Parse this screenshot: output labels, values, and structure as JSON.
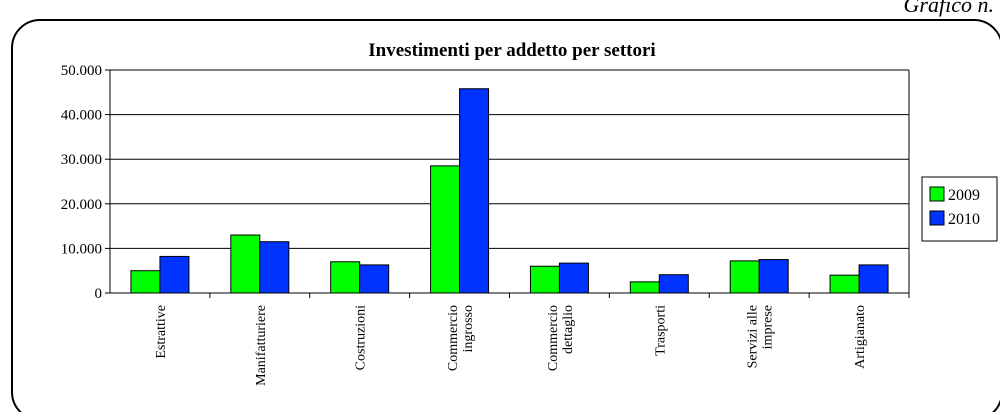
{
  "page": {
    "header_text": "Grafico n."
  },
  "chart_data": {
    "type": "bar",
    "title": "Investimenti per addetto per settori",
    "xlabel": "",
    "ylabel": "",
    "ylim": [
      0,
      50000
    ],
    "yticks": [
      0,
      10000,
      20000,
      30000,
      40000,
      50000
    ],
    "ytick_labels": [
      "0",
      "10.000",
      "20.000",
      "30.000",
      "40.000",
      "50.000"
    ],
    "grid": true,
    "legend_position": "right",
    "categories": [
      [
        "Estrattive"
      ],
      [
        "Manifatturiere"
      ],
      [
        "Costruzioni"
      ],
      [
        "Commercio",
        "ingrosso"
      ],
      [
        "Commercio",
        "dettaglio"
      ],
      [
        "Trasporti"
      ],
      [
        "Servizi alle",
        "imprese"
      ],
      [
        "Artigianato"
      ]
    ],
    "series": [
      {
        "name": "2009",
        "color": "#00ff00",
        "values": [
          5000,
          13000,
          7000,
          28500,
          6000,
          2500,
          7200,
          4000
        ]
      },
      {
        "name": "2010",
        "color": "#0033ff",
        "values": [
          8200,
          11500,
          6300,
          45800,
          6700,
          4100,
          7500,
          6300
        ]
      }
    ]
  }
}
